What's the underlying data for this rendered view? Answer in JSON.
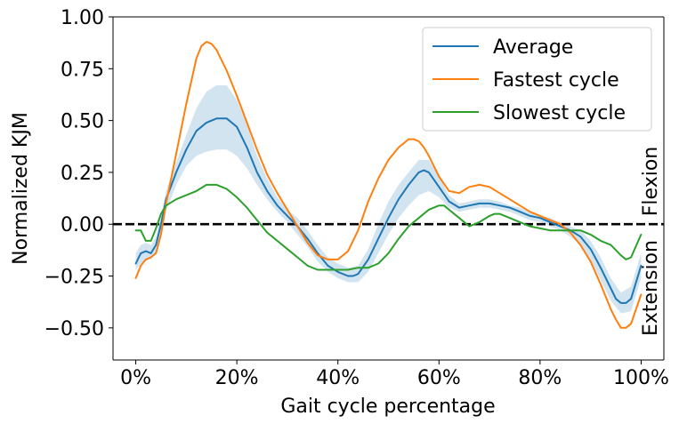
{
  "chart_data": {
    "type": "line",
    "xlabel": "Gait cycle percentage",
    "ylabel": "Normalized KJM",
    "xlim": [
      -4.5,
      104.5
    ],
    "ylim": [
      -0.655,
      1.0
    ],
    "x_ticks": [
      0,
      20,
      40,
      60,
      80,
      100
    ],
    "x_tick_labels": [
      "0%",
      "20%",
      "40%",
      "60%",
      "80%",
      "100%"
    ],
    "y_ticks": [
      1.0,
      0.75,
      0.5,
      0.25,
      0.0,
      -0.25,
      -0.5
    ],
    "y_tick_labels": [
      "1.00",
      "0.75",
      "0.50",
      "0.25",
      "0.00",
      "−0.25",
      "−0.50"
    ],
    "grid": false,
    "legend": "top-right",
    "reference_line": {
      "y": 0,
      "style": "dashed",
      "color": "#000000"
    },
    "side_labels": {
      "upper": "Flexion",
      "lower": "Extension"
    },
    "series": [
      {
        "name": "Average",
        "color": "#1f77b4",
        "x": [
          0,
          1,
          2,
          3,
          4,
          5,
          6,
          8,
          10,
          12,
          14,
          16,
          17,
          18,
          20,
          22,
          24,
          26,
          28,
          30,
          32,
          34,
          36,
          38,
          40,
          42,
          43,
          44,
          46,
          48,
          50,
          52,
          54,
          56,
          57,
          58,
          60,
          62,
          64,
          66,
          68,
          70,
          72,
          74,
          76,
          78,
          80,
          82,
          84,
          86,
          88,
          90,
          92,
          94,
          95,
          96,
          97,
          98,
          100
        ],
        "y": [
          -0.19,
          -0.14,
          -0.13,
          -0.14,
          -0.1,
          0.0,
          0.12,
          0.25,
          0.36,
          0.45,
          0.49,
          0.51,
          0.51,
          0.51,
          0.47,
          0.37,
          0.25,
          0.16,
          0.09,
          0.04,
          -0.01,
          -0.07,
          -0.14,
          -0.2,
          -0.23,
          -0.25,
          -0.25,
          -0.24,
          -0.17,
          -0.07,
          0.03,
          0.12,
          0.19,
          0.25,
          0.26,
          0.25,
          0.18,
          0.11,
          0.08,
          0.09,
          0.1,
          0.1,
          0.09,
          0.08,
          0.06,
          0.04,
          0.03,
          0.01,
          -0.01,
          -0.03,
          -0.06,
          -0.12,
          -0.21,
          -0.31,
          -0.36,
          -0.38,
          -0.38,
          -0.36,
          -0.2
        ]
      },
      {
        "name": "Fastest cycle",
        "color": "#ff7f0e",
        "x": [
          0,
          1,
          2,
          3,
          4,
          5,
          6,
          8,
          10,
          12,
          13,
          14,
          15,
          16,
          18,
          20,
          22,
          24,
          26,
          28,
          30,
          32,
          34,
          36,
          38,
          40,
          42,
          44,
          46,
          48,
          50,
          52,
          54,
          55,
          56,
          57,
          58,
          60,
          62,
          64,
          66,
          68,
          70,
          72,
          74,
          76,
          78,
          80,
          82,
          84,
          86,
          88,
          90,
          92,
          94,
          95,
          96,
          97,
          98,
          100
        ],
        "y": [
          -0.26,
          -0.2,
          -0.17,
          -0.16,
          -0.14,
          -0.05,
          0.1,
          0.34,
          0.58,
          0.8,
          0.86,
          0.88,
          0.87,
          0.84,
          0.74,
          0.62,
          0.49,
          0.36,
          0.24,
          0.15,
          0.07,
          -0.01,
          -0.09,
          -0.15,
          -0.17,
          -0.17,
          -0.13,
          -0.03,
          0.11,
          0.22,
          0.31,
          0.37,
          0.41,
          0.41,
          0.4,
          0.37,
          0.33,
          0.23,
          0.16,
          0.15,
          0.18,
          0.19,
          0.18,
          0.15,
          0.12,
          0.09,
          0.06,
          0.04,
          0.02,
          0.0,
          -0.04,
          -0.1,
          -0.18,
          -0.29,
          -0.41,
          -0.46,
          -0.5,
          -0.5,
          -0.48,
          -0.34
        ]
      },
      {
        "name": "Slowest cycle",
        "color": "#2ca02c",
        "x": [
          0,
          1,
          2,
          3,
          4,
          5,
          6,
          8,
          10,
          12,
          14,
          16,
          18,
          20,
          22,
          24,
          26,
          28,
          30,
          32,
          34,
          36,
          38,
          40,
          42,
          44,
          46,
          48,
          50,
          52,
          54,
          56,
          58,
          60,
          61,
          62,
          64,
          66,
          68,
          70,
          71,
          72,
          74,
          76,
          78,
          80,
          82,
          84,
          86,
          88,
          90,
          92,
          94,
          96,
          97,
          98,
          100
        ],
        "y": [
          -0.03,
          -0.03,
          -0.08,
          -0.08,
          -0.02,
          0.05,
          0.09,
          0.12,
          0.14,
          0.16,
          0.19,
          0.19,
          0.17,
          0.13,
          0.08,
          0.02,
          -0.04,
          -0.08,
          -0.12,
          -0.16,
          -0.2,
          -0.22,
          -0.22,
          -0.22,
          -0.22,
          -0.21,
          -0.21,
          -0.19,
          -0.14,
          -0.07,
          -0.01,
          0.03,
          0.07,
          0.09,
          0.09,
          0.07,
          0.03,
          -0.01,
          0.01,
          0.04,
          0.05,
          0.05,
          0.03,
          0.01,
          -0.01,
          -0.02,
          -0.03,
          -0.03,
          -0.03,
          -0.03,
          -0.05,
          -0.08,
          -0.1,
          -0.15,
          -0.17,
          -0.16,
          -0.05
        ]
      }
    ],
    "band": {
      "name": "Average range",
      "color": "#1f77b4",
      "x": [
        0,
        1,
        2,
        3,
        4,
        5,
        6,
        8,
        10,
        12,
        14,
        16,
        18,
        20,
        22,
        24,
        26,
        28,
        30,
        32,
        34,
        36,
        38,
        40,
        42,
        44,
        46,
        48,
        50,
        52,
        54,
        56,
        58,
        60,
        62,
        64,
        66,
        68,
        70,
        72,
        74,
        76,
        78,
        80,
        82,
        84,
        86,
        88,
        90,
        92,
        94,
        96,
        98,
        100
      ],
      "lower": [
        -0.22,
        -0.19,
        -0.17,
        -0.17,
        -0.14,
        -0.05,
        0.06,
        0.19,
        0.28,
        0.33,
        0.35,
        0.36,
        0.36,
        0.33,
        0.27,
        0.19,
        0.12,
        0.06,
        0.01,
        -0.05,
        -0.11,
        -0.18,
        -0.23,
        -0.26,
        -0.28,
        -0.28,
        -0.23,
        -0.14,
        -0.05,
        0.03,
        0.09,
        0.14,
        0.16,
        0.13,
        0.08,
        0.06,
        0.07,
        0.08,
        0.08,
        0.07,
        0.06,
        0.04,
        0.02,
        0.01,
        -0.01,
        -0.03,
        -0.06,
        -0.1,
        -0.17,
        -0.27,
        -0.37,
        -0.43,
        -0.42,
        -0.26
      ],
      "upper": [
        -0.14,
        -0.1,
        -0.09,
        -0.1,
        -0.06,
        0.04,
        0.16,
        0.3,
        0.43,
        0.56,
        0.64,
        0.67,
        0.67,
        0.6,
        0.48,
        0.33,
        0.22,
        0.13,
        0.07,
        0.03,
        -0.03,
        -0.1,
        -0.16,
        -0.19,
        -0.21,
        -0.2,
        -0.12,
        0.0,
        0.11,
        0.19,
        0.25,
        0.31,
        0.31,
        0.23,
        0.14,
        0.1,
        0.11,
        0.12,
        0.12,
        0.11,
        0.09,
        0.08,
        0.06,
        0.04,
        0.03,
        0.01,
        -0.01,
        -0.03,
        -0.08,
        -0.16,
        -0.26,
        -0.33,
        -0.3,
        -0.14
      ]
    }
  }
}
